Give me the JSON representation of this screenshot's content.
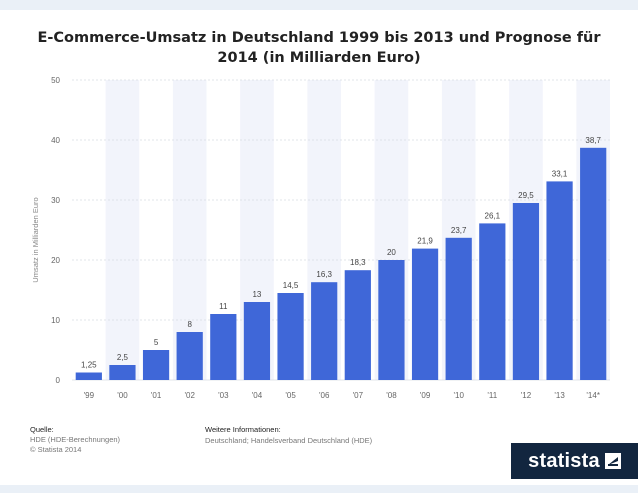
{
  "chart_data": {
    "type": "bar",
    "title": "E-Commerce-Umsatz in Deutschland 1999 bis 2013 und Prognose für 2014 (in Milliarden Euro)",
    "ylabel": "Umsatz in Milliarden Euro",
    "xlabel": "",
    "ylim": [
      0,
      50
    ],
    "yticks": [
      0,
      10,
      20,
      30,
      40,
      50
    ],
    "categories": [
      "'99",
      "'00",
      "'01",
      "'02",
      "'03",
      "'04",
      "'05",
      "'06",
      "'07",
      "'08",
      "'09",
      "'10",
      "'11",
      "'12",
      "'13",
      "'14*"
    ],
    "values": [
      1.25,
      2.5,
      5,
      8,
      11,
      13,
      14.5,
      16.3,
      18.3,
      20,
      21.9,
      23.7,
      26.1,
      29.5,
      33.1,
      38.7
    ],
    "value_labels": [
      "1,25",
      "2,5",
      "5",
      "8",
      "11",
      "13",
      "14,5",
      "16,3",
      "18,3",
      "20",
      "21,9",
      "23,7",
      "26,1",
      "29,5",
      "33,1",
      "38,7"
    ],
    "bar_color": "#3f67d8",
    "grid": true,
    "legend": "none"
  },
  "footer": {
    "source_heading": "Quelle:",
    "source_lines": [
      "HDE (HDE-Berechnungen)",
      "© Statista 2014"
    ],
    "info_heading": "Weitere Informationen:",
    "info_line": "Deutschland; Handelsverband Deutschland (HDE)"
  },
  "brand": {
    "name": "statista"
  }
}
